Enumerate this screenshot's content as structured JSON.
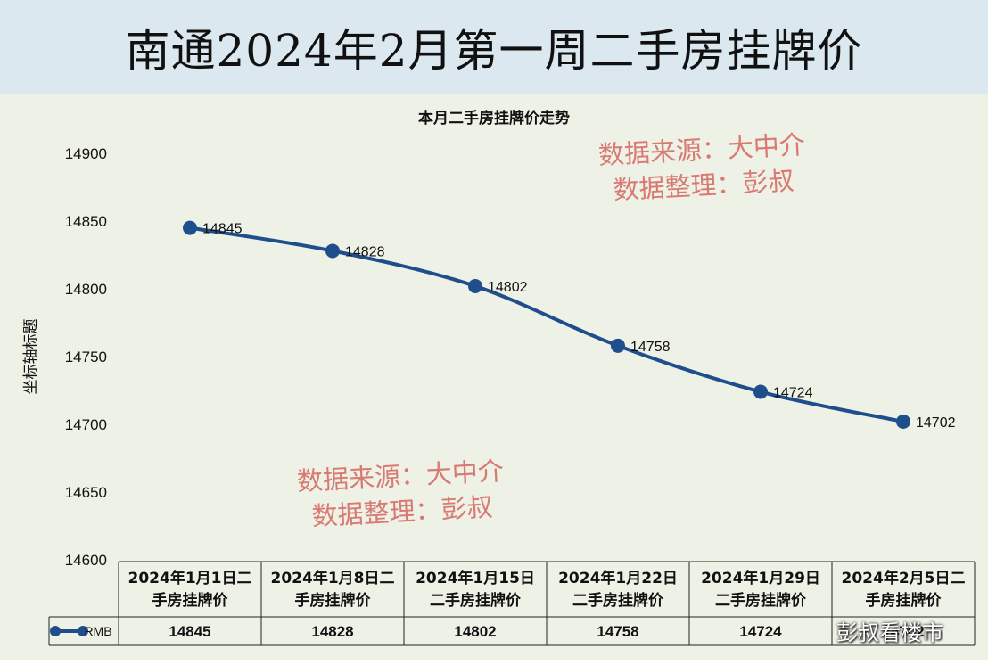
{
  "banner": {
    "title": "南通2024年2月第一周二手房挂牌价"
  },
  "colors": {
    "banner_bg": "#dbe8ef",
    "chart_bg": "#eef1e6",
    "series": "#1f4e8c",
    "watermark": "#d97a72"
  },
  "chart_data": {
    "type": "line",
    "title": "本月二手房挂牌价走势",
    "ylabel": "坐标轴标题",
    "xlabel": "",
    "ylim": [
      14600,
      14900
    ],
    "yticks": [
      14600,
      14650,
      14700,
      14750,
      14800,
      14850,
      14900
    ],
    "categories": [
      [
        "2024年1月1日二",
        "手房挂牌价"
      ],
      [
        "2024年1月8日二",
        "手房挂牌价"
      ],
      [
        "2024年1月15日",
        "二手房挂牌价"
      ],
      [
        "2024年1月22日",
        "二手房挂牌价"
      ],
      [
        "2024年1月29日",
        "二手房挂牌价"
      ],
      [
        "2024年2月5日二",
        "手房挂牌价"
      ]
    ],
    "series": [
      {
        "name": "RMB",
        "values": [
          14845,
          14828,
          14802,
          14758,
          14724,
          14702
        ]
      }
    ],
    "grid": false,
    "legend": "data-table"
  },
  "watermarks": {
    "line1": "数据来源：大中介",
    "line2": "数据整理：彭叔",
    "corner": "彭叔看楼市"
  }
}
